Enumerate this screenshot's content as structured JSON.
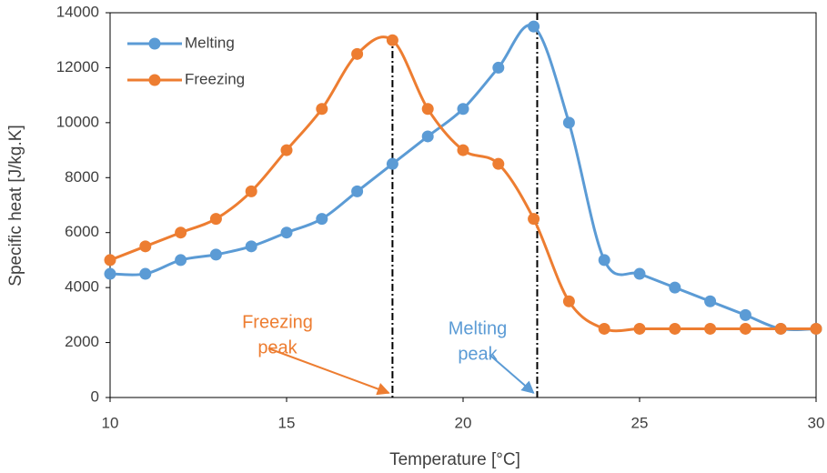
{
  "chart_data": {
    "type": "line",
    "smooth": true,
    "x_label": "Temperature [°C]",
    "y_label": "Specific heat [J/kg.K]",
    "x": [
      10,
      11,
      12,
      13,
      14,
      15,
      16,
      17,
      18,
      19,
      20,
      21,
      22,
      23,
      24,
      25,
      26,
      27,
      28,
      29,
      30
    ],
    "series": [
      {
        "name": "Melting",
        "color": "#5b9bd5",
        "values": [
          4500,
          4500,
          5000,
          5200,
          5500,
          6000,
          6500,
          7500,
          8500,
          9500,
          10500,
          12000,
          13500,
          10000,
          5000,
          4500,
          4000,
          3500,
          3000,
          2500,
          2500
        ]
      },
      {
        "name": "Freezing",
        "color": "#ed7d31",
        "values": [
          5000,
          5500,
          6000,
          6500,
          7500,
          9000,
          10500,
          12500,
          13000,
          10500,
          9000,
          8500,
          6500,
          3500,
          2500,
          2500,
          2500,
          2500,
          2500,
          2500,
          2500
        ]
      }
    ],
    "annotations": [
      {
        "lines": [
          "Freezing",
          "peak"
        ],
        "x": 18,
        "color": "#ed7d31"
      },
      {
        "lines": [
          "Melting",
          "peak"
        ],
        "x": 22.1,
        "color": "#5b9bd5"
      }
    ],
    "xlim": [
      10,
      30
    ],
    "xticks": [
      10,
      15,
      20,
      25,
      30
    ],
    "ylim": [
      0,
      14000
    ],
    "yticks": [
      0,
      2000,
      4000,
      6000,
      8000,
      10000,
      12000,
      14000
    ],
    "grid": false,
    "legend": "upper left"
  }
}
